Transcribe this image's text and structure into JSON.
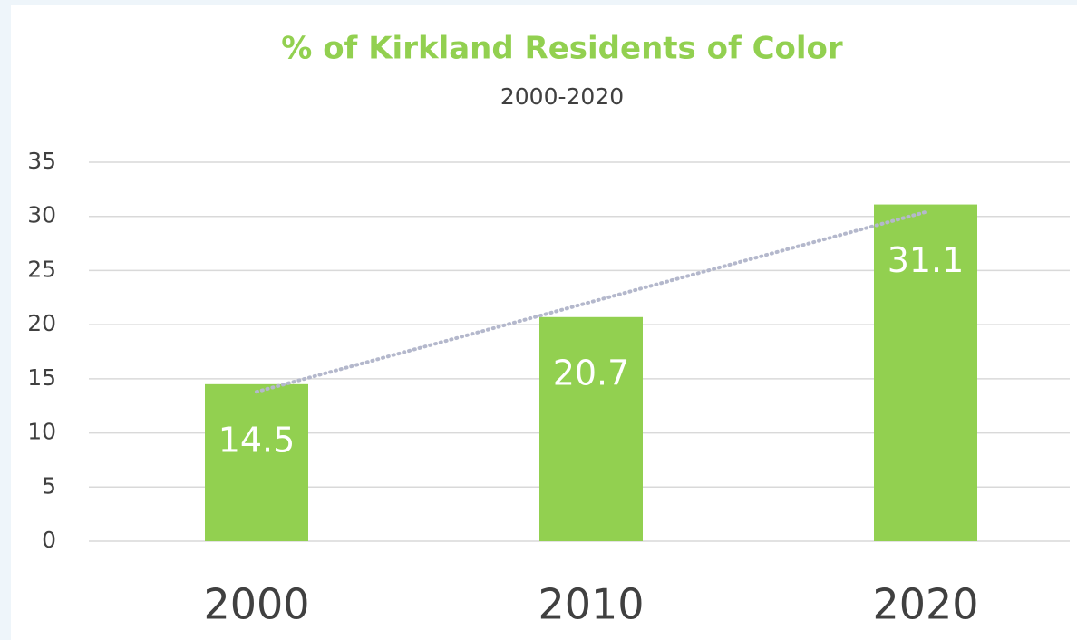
{
  "chart_data": {
    "type": "bar",
    "title": "% of Kirkland Residents of Color",
    "subtitle": "2000-2020",
    "categories": [
      "2000",
      "2010",
      "2020"
    ],
    "values": [
      14.5,
      20.7,
      31.1
    ],
    "color": "#92d050",
    "ylim": [
      0,
      35
    ],
    "yticks": [
      0,
      5,
      10,
      15,
      20,
      25,
      30,
      35
    ],
    "grid": true,
    "trendline": true
  }
}
